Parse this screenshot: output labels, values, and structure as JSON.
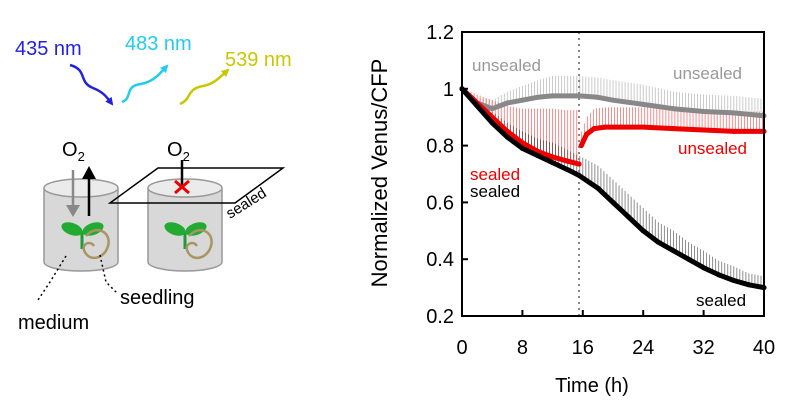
{
  "diagram": {
    "wavelengths": [
      {
        "label": "435 nm",
        "color": "#2222dd"
      },
      {
        "label": "483 nm",
        "color": "#22ccee"
      },
      {
        "label": "539 nm",
        "color": "#c8c800"
      }
    ],
    "o2_left": "O",
    "o2_right": "O",
    "o2_sub": "2",
    "sealed_lid_label": "sealed",
    "seedling_label": "seedling",
    "medium_label": "medium"
  },
  "chart_data": {
    "type": "line",
    "xlabel": "Time (h)",
    "ylabel": "Normalized Venus/CFP",
    "xlim": [
      0,
      40
    ],
    "ylim": [
      0.2,
      1.2
    ],
    "xticks": [
      0,
      8,
      16,
      24,
      32,
      40
    ],
    "yticks": [
      0.2,
      0.4,
      0.6,
      0.8,
      1,
      1.2
    ],
    "xtick_labels": [
      "0",
      "8",
      "16",
      "24",
      "32",
      "40"
    ],
    "ytick_labels": [
      "0.2",
      "0.4",
      "0.6",
      "0.8",
      "1",
      "1.2"
    ],
    "vline_x": 15.5,
    "annotations": [
      {
        "text": "unsealed",
        "color": "#999999"
      },
      {
        "text": "unsealed",
        "color": "#999999"
      },
      {
        "text": "unsealed",
        "color": "#ff0000"
      },
      {
        "text": "sealed",
        "color": "#ff0000"
      },
      {
        "text": "sealed",
        "color": "#000000"
      },
      {
        "text": "sealed",
        "color": "#000000"
      }
    ],
    "series": [
      {
        "color": "#888888",
        "x": [
          0,
          2,
          4,
          6,
          8,
          10,
          12,
          14,
          15.5,
          18,
          20,
          24,
          28,
          32,
          36,
          40
        ],
        "y": [
          1.0,
          0.95,
          0.93,
          0.95,
          0.96,
          0.97,
          0.975,
          0.975,
          0.975,
          0.97,
          0.96,
          0.945,
          0.93,
          0.92,
          0.915,
          0.905
        ],
        "err": [
          0.0,
          0.02,
          0.03,
          0.04,
          0.05,
          0.06,
          0.07,
          0.07,
          0.07,
          0.07,
          0.07,
          0.07,
          0.06,
          0.06,
          0.06,
          0.06
        ]
      },
      {
        "color": "#ee0000",
        "x": [
          0,
          2,
          4,
          6,
          8,
          10,
          12,
          14,
          15.5
        ],
        "y": [
          1.0,
          0.95,
          0.9,
          0.85,
          0.81,
          0.78,
          0.76,
          0.745,
          0.735
        ],
        "err": [
          0.0,
          0.03,
          0.06,
          0.09,
          0.12,
          0.15,
          0.17,
          0.18,
          0.19
        ]
      },
      {
        "color": "#ee0000",
        "x": [
          15.8,
          16.5,
          17.5,
          19,
          21,
          24,
          28,
          32,
          36,
          40
        ],
        "y": [
          0.8,
          0.84,
          0.86,
          0.865,
          0.865,
          0.865,
          0.86,
          0.855,
          0.85,
          0.85
        ],
        "err": [
          0.05,
          0.06,
          0.07,
          0.07,
          0.07,
          0.07,
          0.07,
          0.07,
          0.07,
          0.07
        ]
      },
      {
        "color": "#000000",
        "x": [
          0,
          2,
          4,
          6,
          8,
          10,
          12,
          14,
          15.5,
          18,
          20,
          22,
          24,
          26,
          28,
          30,
          32,
          34,
          36,
          38,
          40
        ],
        "y": [
          1.0,
          0.94,
          0.88,
          0.83,
          0.79,
          0.765,
          0.74,
          0.715,
          0.695,
          0.65,
          0.6,
          0.55,
          0.5,
          0.46,
          0.43,
          0.4,
          0.37,
          0.345,
          0.325,
          0.31,
          0.3
        ],
        "err": [
          0.0,
          0.02,
          0.04,
          0.05,
          0.06,
          0.06,
          0.07,
          0.07,
          0.07,
          0.08,
          0.08,
          0.08,
          0.08,
          0.07,
          0.07,
          0.06,
          0.06,
          0.05,
          0.05,
          0.04,
          0.04
        ]
      }
    ]
  }
}
